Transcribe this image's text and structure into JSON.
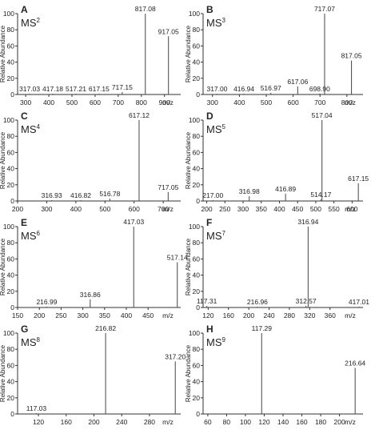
{
  "figure": {
    "units_label": "m/z",
    "y_axis_label": "Relative Abundance"
  },
  "chart_data": [
    {
      "type": "bar",
      "panel": "A",
      "title": "MS",
      "title_sup": "2",
      "ylabel": "Relative Abundance",
      "xlabel": "m/z",
      "xlim": [
        265,
        970
      ],
      "ylim": [
        0,
        100
      ],
      "xticks": [
        300,
        400,
        500,
        600,
        700,
        800,
        900
      ],
      "yticks": [
        0,
        20,
        40,
        60,
        80,
        100
      ],
      "peaks": [
        {
          "mz": 317.03,
          "intensity": 1,
          "label": "317.03"
        },
        {
          "mz": 417.18,
          "intensity": 1,
          "label": "417.18"
        },
        {
          "mz": 517.21,
          "intensity": 1,
          "label": "517.21"
        },
        {
          "mz": 617.15,
          "intensity": 1,
          "label": "617.15"
        },
        {
          "mz": 717.15,
          "intensity": 3,
          "label": "717.15"
        },
        {
          "mz": 817.08,
          "intensity": 100,
          "label": "817.08"
        },
        {
          "mz": 917.05,
          "intensity": 72,
          "label": "917.05"
        }
      ]
    },
    {
      "type": "bar",
      "panel": "B",
      "title": "MS",
      "title_sup": "3",
      "ylabel": "Relative Abundance",
      "xlabel": "m/z",
      "xlim": [
        265,
        860
      ],
      "ylim": [
        0,
        100
      ],
      "xticks": [
        300,
        400,
        500,
        600,
        700,
        800
      ],
      "yticks": [
        0,
        20,
        40,
        60,
        80,
        100
      ],
      "peaks": [
        {
          "mz": 317.0,
          "intensity": 1,
          "label": "317.00"
        },
        {
          "mz": 416.94,
          "intensity": 1,
          "label": "416.94"
        },
        {
          "mz": 516.97,
          "intensity": 2,
          "label": "516.97"
        },
        {
          "mz": 617.06,
          "intensity": 10,
          "label": "617.06"
        },
        {
          "mz": 698.9,
          "intensity": 1,
          "label": "698.90"
        },
        {
          "mz": 717.07,
          "intensity": 100,
          "label": "717.07"
        },
        {
          "mz": 817.05,
          "intensity": 42,
          "label": "817.05"
        }
      ]
    },
    {
      "type": "bar",
      "panel": "C",
      "title": "MS",
      "title_sup": "4",
      "ylabel": "Relative Abundance",
      "xlabel": "m/z",
      "xlim": [
        200,
        760
      ],
      "ylim": [
        0,
        100
      ],
      "xticks": [
        200,
        300,
        400,
        500,
        600,
        700
      ],
      "yticks": [
        0,
        20,
        40,
        60,
        80,
        100
      ],
      "peaks": [
        {
          "mz": 316.93,
          "intensity": 1,
          "label": "316.93"
        },
        {
          "mz": 416.82,
          "intensity": 1,
          "label": "416.82"
        },
        {
          "mz": 516.78,
          "intensity": 3,
          "label": "516.78"
        },
        {
          "mz": 617.12,
          "intensity": 100,
          "label": "617.12"
        },
        {
          "mz": 717.05,
          "intensity": 11,
          "label": "717.05"
        }
      ]
    },
    {
      "type": "bar",
      "panel": "D",
      "title": "MS",
      "title_sup": "5",
      "ylabel": "Relative Abundance",
      "xlabel": "m/z",
      "xlim": [
        190,
        630
      ],
      "ylim": [
        0,
        100
      ],
      "xticks": [
        200,
        250,
        300,
        350,
        400,
        450,
        500,
        550,
        600
      ],
      "yticks": [
        0,
        20,
        40,
        60,
        80,
        100
      ],
      "peaks": [
        {
          "mz": 217.0,
          "intensity": 1,
          "label": "217.00"
        },
        {
          "mz": 316.98,
          "intensity": 6,
          "label": "316.98"
        },
        {
          "mz": 416.89,
          "intensity": 9,
          "label": "416.89"
        },
        {
          "mz": 514.17,
          "intensity": 2,
          "label": "514.17"
        },
        {
          "mz": 517.04,
          "intensity": 100,
          "label": "517.04"
        },
        {
          "mz": 617.15,
          "intensity": 22,
          "label": "617.15"
        }
      ]
    },
    {
      "type": "bar",
      "panel": "E",
      "title": "MS",
      "title_sup": "6",
      "ylabel": "Relative Abundance",
      "xlabel": "m/z",
      "xlim": [
        150,
        525
      ],
      "ylim": [
        0,
        100
      ],
      "xticks": [
        150,
        200,
        250,
        300,
        350,
        400,
        450
      ],
      "yticks": [
        0,
        20,
        40,
        60,
        80,
        100
      ],
      "peaks": [
        {
          "mz": 216.99,
          "intensity": 1,
          "label": "216.99"
        },
        {
          "mz": 316.86,
          "intensity": 10,
          "label": "316.86"
        },
        {
          "mz": 417.03,
          "intensity": 100,
          "label": "417.03"
        },
        {
          "mz": 517.14,
          "intensity": 56,
          "label": "517.14"
        }
      ]
    },
    {
      "type": "bar",
      "panel": "F",
      "title": "MS",
      "title_sup": "7",
      "ylabel": "Relative Abundance",
      "xlabel": "m/z",
      "xlim": [
        110,
        425
      ],
      "ylim": [
        0,
        100
      ],
      "xticks": [
        120,
        160,
        200,
        240,
        280,
        320,
        360
      ],
      "yticks": [
        0,
        20,
        40,
        60,
        80,
        100
      ],
      "peaks": [
        {
          "mz": 117.31,
          "intensity": 2,
          "label": "117.31"
        },
        {
          "mz": 216.96,
          "intensity": 1,
          "label": "216.96"
        },
        {
          "mz": 312.57,
          "intensity": 2,
          "label": "312.57"
        },
        {
          "mz": 316.94,
          "intensity": 100,
          "label": "316.94"
        },
        {
          "mz": 417.01,
          "intensity": 1,
          "label": "417.01"
        }
      ]
    },
    {
      "type": "bar",
      "panel": "G",
      "title": "MS",
      "title_sup": "8",
      "ylabel": "Relative Abundance",
      "xlabel": "m/z",
      "xlim": [
        90,
        325
      ],
      "ylim": [
        0,
        100
      ],
      "xticks": [
        120,
        160,
        200,
        240,
        280
      ],
      "yticks": [
        0,
        20,
        40,
        60,
        80,
        100
      ],
      "peaks": [
        {
          "mz": 117.03,
          "intensity": 1,
          "label": "117.03"
        },
        {
          "mz": 216.82,
          "intensity": 100,
          "label": "216.82"
        },
        {
          "mz": 317.2,
          "intensity": 65,
          "label": "317.20"
        }
      ]
    },
    {
      "type": "bar",
      "panel": "H",
      "title": "MS",
      "title_sup": "9",
      "ylabel": "Relative Abundance",
      "xlabel": "m/z",
      "xlim": [
        55,
        225
      ],
      "ylim": [
        0,
        100
      ],
      "xticks": [
        60,
        80,
        100,
        120,
        140,
        160,
        180,
        200
      ],
      "yticks": [
        0,
        20,
        40,
        60,
        80,
        100
      ],
      "peaks": [
        {
          "mz": 117.29,
          "intensity": 100,
          "label": "117.29"
        },
        {
          "mz": 216.64,
          "intensity": 57,
          "label": "216.64"
        }
      ]
    }
  ]
}
